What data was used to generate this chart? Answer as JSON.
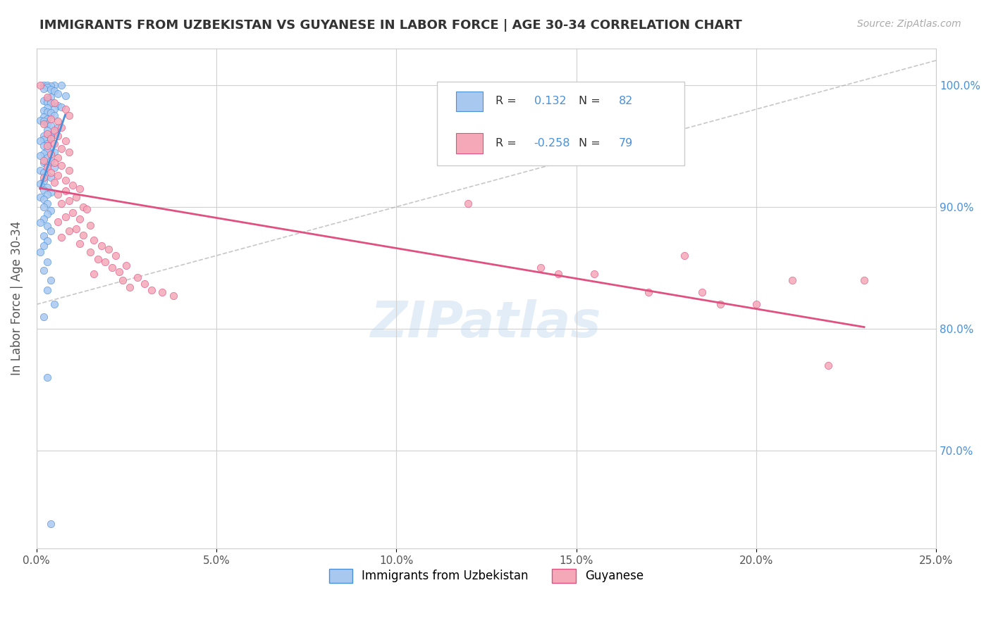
{
  "title": "IMMIGRANTS FROM UZBEKISTAN VS GUYANESE IN LABOR FORCE | AGE 30-34 CORRELATION CHART",
  "source": "Source: ZipAtlas.com",
  "ylabel": "In Labor Force | Age 30-34",
  "ylabel_ticks": [
    "100.0%",
    "90.0%",
    "80.0%",
    "70.0%"
  ],
  "ylabel_tick_values": [
    1.0,
    0.9,
    0.8,
    0.7
  ],
  "xlim": [
    0.0,
    0.25
  ],
  "ylim": [
    0.62,
    1.03
  ],
  "r_uzbekistan": 0.132,
  "n_uzbekistan": 82,
  "r_guyanese": -0.258,
  "n_guyanese": 79,
  "color_uzbekistan": "#a8c8f0",
  "color_uzbekistan_line": "#4a90d9",
  "color_guyanese": "#f4a8b8",
  "color_guyanese_line": "#e05080",
  "color_trend_dashed": "#b0b0b0",
  "legend_label_uzbekistan": "Immigrants from Uzbekistan",
  "legend_label_guyanese": "Guyanese",
  "uzbekistan_x": [
    0.002,
    0.005,
    0.007,
    0.003,
    0.004,
    0.003,
    0.002,
    0.004,
    0.005,
    0.006,
    0.008,
    0.004,
    0.003,
    0.002,
    0.003,
    0.004,
    0.006,
    0.007,
    0.003,
    0.005,
    0.002,
    0.003,
    0.004,
    0.005,
    0.002,
    0.003,
    0.001,
    0.002,
    0.003,
    0.004,
    0.006,
    0.003,
    0.005,
    0.002,
    0.004,
    0.003,
    0.002,
    0.001,
    0.003,
    0.002,
    0.004,
    0.003,
    0.005,
    0.002,
    0.001,
    0.003,
    0.004,
    0.002,
    0.003,
    0.005,
    0.001,
    0.002,
    0.003,
    0.004,
    0.002,
    0.001,
    0.003,
    0.002,
    0.004,
    0.003,
    0.001,
    0.002,
    0.003,
    0.002,
    0.004,
    0.003,
    0.002,
    0.001,
    0.003,
    0.004,
    0.002,
    0.003,
    0.002,
    0.001,
    0.003,
    0.002,
    0.004,
    0.003,
    0.005,
    0.002,
    0.003,
    0.004
  ],
  "uzbekistan_y": [
    1.0,
    1.0,
    1.0,
    1.0,
    0.999,
    0.998,
    0.997,
    0.996,
    0.995,
    0.993,
    0.991,
    0.99,
    0.988,
    0.987,
    0.986,
    0.985,
    0.983,
    0.982,
    0.981,
    0.98,
    0.979,
    0.978,
    0.977,
    0.975,
    0.974,
    0.972,
    0.971,
    0.97,
    0.968,
    0.967,
    0.965,
    0.963,
    0.961,
    0.958,
    0.957,
    0.956,
    0.955,
    0.954,
    0.952,
    0.95,
    0.948,
    0.946,
    0.945,
    0.944,
    0.942,
    0.94,
    0.938,
    0.936,
    0.934,
    0.932,
    0.93,
    0.928,
    0.926,
    0.924,
    0.921,
    0.919,
    0.916,
    0.914,
    0.912,
    0.91,
    0.908,
    0.906,
    0.903,
    0.9,
    0.897,
    0.894,
    0.89,
    0.887,
    0.884,
    0.88,
    0.876,
    0.872,
    0.868,
    0.863,
    0.855,
    0.848,
    0.84,
    0.832,
    0.82,
    0.81,
    0.76,
    0.64
  ],
  "guyanese_x": [
    0.001,
    0.003,
    0.005,
    0.008,
    0.009,
    0.004,
    0.006,
    0.002,
    0.007,
    0.005,
    0.003,
    0.006,
    0.004,
    0.008,
    0.005,
    0.003,
    0.007,
    0.009,
    0.004,
    0.006,
    0.002,
    0.005,
    0.007,
    0.003,
    0.009,
    0.004,
    0.006,
    0.002,
    0.008,
    0.005,
    0.01,
    0.012,
    0.008,
    0.006,
    0.011,
    0.009,
    0.007,
    0.013,
    0.014,
    0.01,
    0.008,
    0.012,
    0.006,
    0.015,
    0.011,
    0.009,
    0.013,
    0.007,
    0.016,
    0.012,
    0.018,
    0.02,
    0.015,
    0.022,
    0.017,
    0.019,
    0.025,
    0.021,
    0.023,
    0.016,
    0.028,
    0.024,
    0.03,
    0.026,
    0.032,
    0.035,
    0.038,
    0.14,
    0.145,
    0.12,
    0.155,
    0.17,
    0.18,
    0.185,
    0.19,
    0.2,
    0.21,
    0.22,
    0.23
  ],
  "guyanese_y": [
    1.0,
    0.99,
    0.985,
    0.98,
    0.975,
    0.972,
    0.97,
    0.968,
    0.965,
    0.963,
    0.96,
    0.958,
    0.956,
    0.954,
    0.952,
    0.95,
    0.948,
    0.945,
    0.943,
    0.94,
    0.938,
    0.936,
    0.934,
    0.932,
    0.93,
    0.928,
    0.926,
    0.924,
    0.922,
    0.92,
    0.918,
    0.915,
    0.913,
    0.91,
    0.908,
    0.905,
    0.903,
    0.9,
    0.898,
    0.895,
    0.892,
    0.89,
    0.888,
    0.885,
    0.882,
    0.88,
    0.877,
    0.875,
    0.873,
    0.87,
    0.868,
    0.865,
    0.863,
    0.86,
    0.857,
    0.855,
    0.852,
    0.85,
    0.847,
    0.845,
    0.842,
    0.84,
    0.837,
    0.834,
    0.832,
    0.83,
    0.827,
    0.85,
    0.845,
    0.903,
    0.845,
    0.83,
    0.86,
    0.83,
    0.82,
    0.82,
    0.84,
    0.77,
    0.84
  ],
  "watermark": "ZIPatlas",
  "background_color": "#ffffff",
  "grid_color": "#d0d0d0"
}
